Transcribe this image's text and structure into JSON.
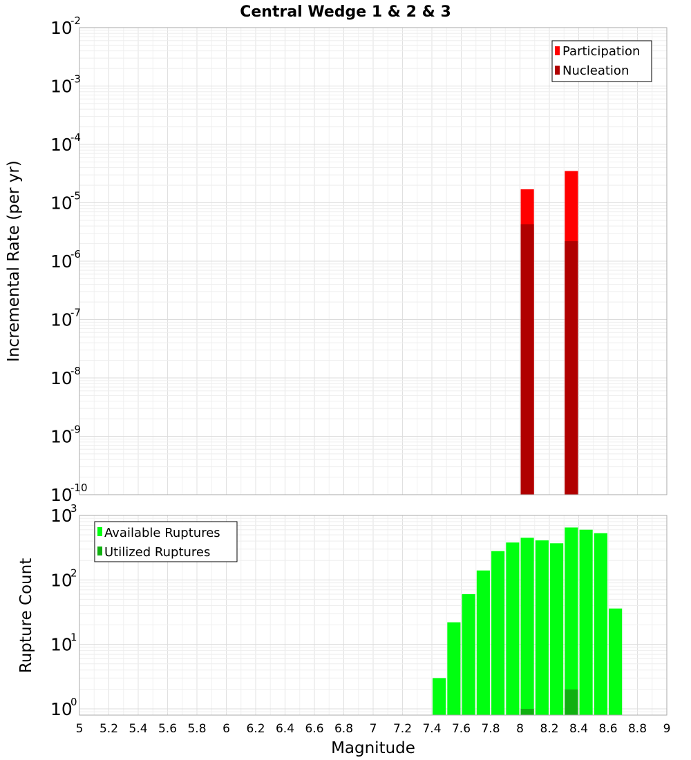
{
  "chart_data": [
    {
      "type": "bar",
      "title": "Central Wedge 1 & 2 & 3",
      "xlabel": "Magnitude",
      "ylabel": "Incremental Rate (per yr)",
      "yscale": "log",
      "ylim": [
        1e-10,
        0.01
      ],
      "xlim": [
        5,
        9
      ],
      "y_ticks": [
        {
          "base": "10",
          "exp": "-10",
          "value": 1e-10
        },
        {
          "base": "10",
          "exp": "-9",
          "value": 1e-09
        },
        {
          "base": "10",
          "exp": "-8",
          "value": 1e-08
        },
        {
          "base": "10",
          "exp": "-7",
          "value": 1e-07
        },
        {
          "base": "10",
          "exp": "-6",
          "value": 1e-06
        },
        {
          "base": "10",
          "exp": "-5",
          "value": 1e-05
        },
        {
          "base": "10",
          "exp": "-4",
          "value": 0.0001
        },
        {
          "base": "10",
          "exp": "-3",
          "value": 0.001
        },
        {
          "base": "10",
          "exp": "-2",
          "value": 0.01
        }
      ],
      "bar_width": 0.09,
      "legend_position": "top-right",
      "series": [
        {
          "name": "Participation",
          "color": "#ff0000",
          "x": [
            8.05,
            8.35
          ],
          "values": [
            1.7e-05,
            3.5e-05
          ]
        },
        {
          "name": "Nucleation",
          "color": "#b00000",
          "x": [
            8.05,
            8.35
          ],
          "values": [
            4.3e-06,
            2.2e-06
          ]
        }
      ]
    },
    {
      "type": "bar",
      "xlabel": "Magnitude",
      "ylabel": "Rupture Count",
      "yscale": "log",
      "ylim": [
        0.8,
        1000
      ],
      "xlim": [
        5,
        9
      ],
      "y_ticks": [
        {
          "base": "10",
          "exp": "0",
          "value": 1
        },
        {
          "base": "10",
          "exp": "1",
          "value": 10
        },
        {
          "base": "10",
          "exp": "2",
          "value": 100
        },
        {
          "base": "10",
          "exp": "3",
          "value": 1000
        }
      ],
      "x_ticks": [
        "5",
        "5.2",
        "5.4",
        "5.6",
        "5.8",
        "6",
        "6.2",
        "6.4",
        "6.6",
        "6.8",
        "7",
        "7.2",
        "7.4",
        "7.6",
        "7.8",
        "8",
        "8.2",
        "8.4",
        "8.6",
        "8.8",
        "9"
      ],
      "bar_width": 0.09,
      "legend_position": "top-left",
      "series": [
        {
          "name": "Available Ruptures",
          "color": "#00ff10",
          "x": [
            7.45,
            7.55,
            7.65,
            7.75,
            7.85,
            7.95,
            8.05,
            8.15,
            8.25,
            8.35,
            8.45,
            8.55,
            8.65
          ],
          "values": [
            3,
            22,
            60,
            140,
            280,
            380,
            450,
            410,
            370,
            650,
            600,
            530,
            36
          ]
        },
        {
          "name": "Utilized Ruptures",
          "color": "#10b010",
          "x": [
            8.05,
            8.35
          ],
          "values": [
            1,
            2
          ]
        }
      ]
    }
  ]
}
